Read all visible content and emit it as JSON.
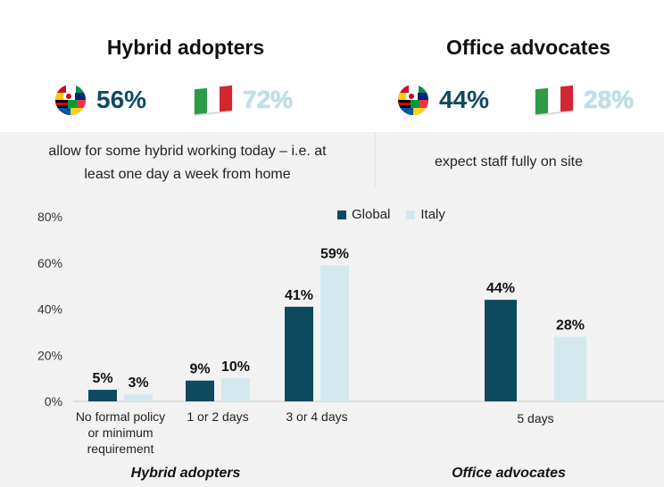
{
  "headings": {
    "left": "Hybrid adopters",
    "right": "Office advocates"
  },
  "stats": {
    "hybrid_global": "56%",
    "hybrid_italy": "72%",
    "office_global": "44%",
    "office_italy": "28%"
  },
  "descriptions": {
    "hybrid_line1": "allow for some hybrid working today – i.e. at",
    "hybrid_line2": "least one day a week from home",
    "office": "expect staff fully on site"
  },
  "group_labels": {
    "left": "Hybrid adopters",
    "right": "Office advocates"
  },
  "colors": {
    "global": "#0e4a5e",
    "italy": "#d3e9ef",
    "italy_flag_green": "#2e9b47",
    "italy_flag_white": "#ffffff",
    "italy_flag_red": "#d22630"
  },
  "icons": {
    "globe": "globe-flags-icon",
    "italy_flag": "italy-flag-icon"
  },
  "chart_data": {
    "type": "bar",
    "categories": [
      [
        "No formal policy",
        "or minimum",
        "requirement"
      ],
      [
        "1 or 2 days"
      ],
      [
        "3 or 4 days"
      ],
      [
        "5 days"
      ]
    ],
    "series": [
      {
        "name": "Global",
        "values": [
          5,
          9,
          41,
          44
        ],
        "labels": [
          "5%",
          "9%",
          "41%",
          "44%"
        ]
      },
      {
        "name": "Italy",
        "values": [
          3,
          10,
          59,
          28
        ],
        "labels": [
          "3%",
          "10%",
          "59%",
          "28%"
        ]
      }
    ],
    "y_ticks": [
      "0%",
      "20%",
      "40%",
      "60%",
      "80%"
    ],
    "ylim": [
      0,
      80
    ],
    "legend": {
      "position": "top-center",
      "entries": [
        "Global",
        "Italy"
      ]
    }
  }
}
